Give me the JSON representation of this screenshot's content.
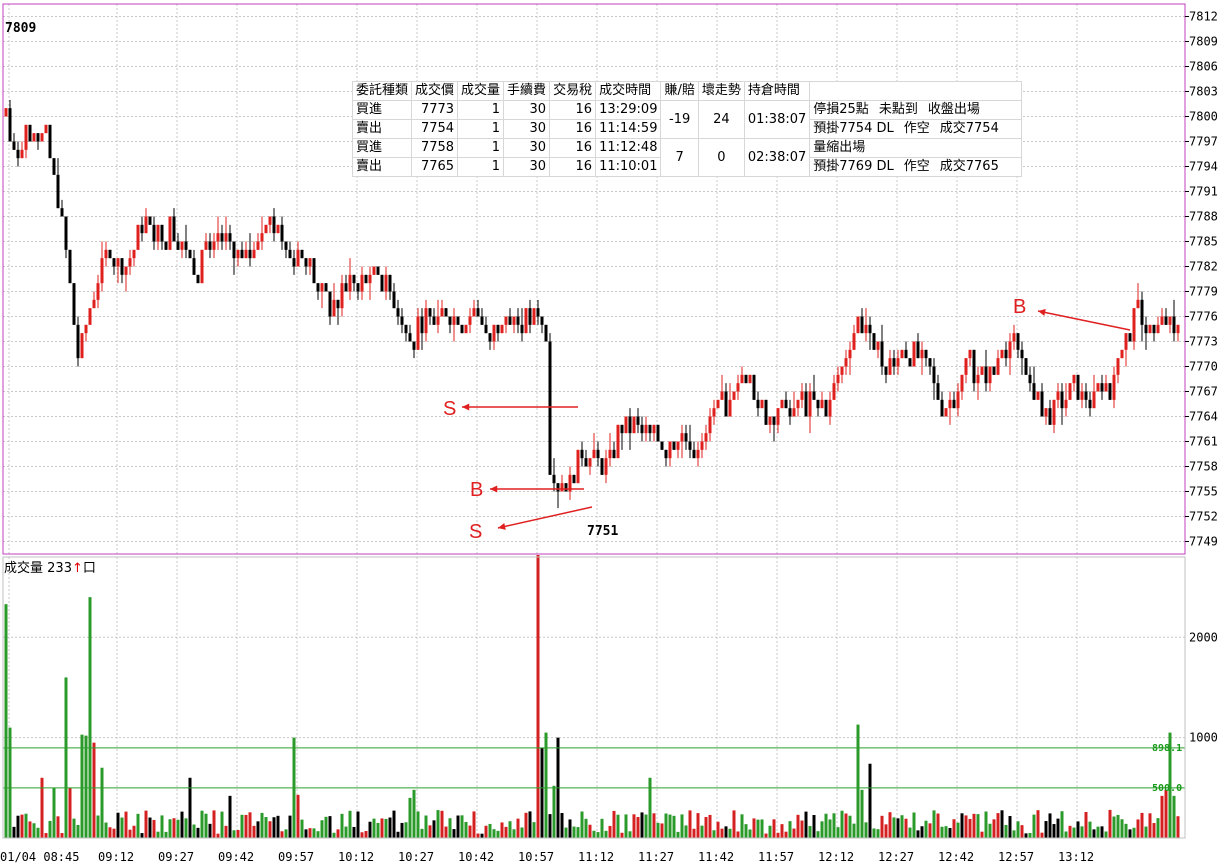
{
  "trade_table": {
    "headers": [
      "委託種類",
      "成交價",
      "成交量",
      "手續費",
      "交易稅",
      "成交時間",
      "賺/賠",
      "壞走勢",
      "持倉時間"
    ],
    "rows": [
      {
        "type": "買進",
        "price": "7773",
        "qty": "1",
        "fee": "30",
        "tax": "16",
        "time": "13:29:09"
      },
      {
        "type": "賣出",
        "price": "7754",
        "qty": "1",
        "fee": "30",
        "tax": "16",
        "time": "11:14:59"
      },
      {
        "type": "買進",
        "price": "7758",
        "qty": "1",
        "fee": "30",
        "tax": "16",
        "time": "11:12:48"
      },
      {
        "type": "賣出",
        "price": "7765",
        "qty": "1",
        "fee": "30",
        "tax": "16",
        "time": "11:10:01"
      }
    ],
    "pairs": [
      {
        "pl": "-19",
        "bad": "24",
        "hold": "01:38:07",
        "note1": [
          "停損25點",
          "未點到",
          "收盤出場"
        ],
        "note2": [
          "預掛7754 DL",
          "作空",
          "成交7754"
        ]
      },
      {
        "pl": "7",
        "bad": "0",
        "hold": "02:38:07",
        "note1": [
          "量縮出場"
        ],
        "note2": [
          "預掛7769 DL",
          "作空",
          "成交7765"
        ]
      }
    ]
  },
  "volume_label": {
    "text": "成交量",
    "value": "233",
    "arrow": "↑",
    "unit": "口"
  },
  "chart_data": {
    "type": "candlestick",
    "price_axis": {
      "ticks": [
        7812,
        7809,
        7806,
        7803,
        7800,
        7797,
        7794,
        7791,
        7788,
        7785,
        7782,
        7779,
        7776,
        7773,
        7770,
        7767,
        7764,
        7761,
        7758,
        7755,
        7752,
        7749
      ],
      "ylim": [
        7747.5,
        7813.5
      ]
    },
    "volume_axis": {
      "ticks": [
        2000,
        1000
      ],
      "ylim": [
        0,
        2800
      ]
    },
    "x_ticks": [
      "01/04 08:45",
      "09:12",
      "09:27",
      "09:42",
      "09:57",
      "10:12",
      "10:27",
      "10:42",
      "10:57",
      "11:12",
      "11:27",
      "11:42",
      "11:57",
      "12:12",
      "12:27",
      "12:42",
      "12:57",
      "13:12"
    ],
    "high_label": "7809",
    "low_label": "7751",
    "reference_lines": [
      {
        "value": 898.1,
        "label": "898.1"
      },
      {
        "value": 500.0,
        "label": "500.0"
      }
    ],
    "markers": [
      {
        "letter": "S",
        "time": "10:58",
        "price": 7765
      },
      {
        "letter": "B",
        "time": "10:58",
        "price": 7755.5
      },
      {
        "letter": "S",
        "time": "11:02",
        "price": 7751.5
      },
      {
        "letter": "B",
        "time": "13:29",
        "price": 7774
      }
    ],
    "anchors": [
      [
        "08:45",
        7800
      ],
      [
        "08:47",
        7795
      ],
      [
        "08:50",
        7798
      ],
      [
        "08:52",
        7796
      ],
      [
        "08:55",
        7798
      ],
      [
        "08:58",
        7790
      ],
      [
        "09:00",
        7784
      ],
      [
        "09:03",
        7771
      ],
      [
        "09:05",
        7775
      ],
      [
        "09:08",
        7781
      ],
      [
        "09:11",
        7784
      ],
      [
        "09:14",
        7782
      ],
      [
        "09:17",
        7784
      ],
      [
        "09:20",
        7788
      ],
      [
        "09:23",
        7786
      ],
      [
        "09:26",
        7787
      ],
      [
        "09:29",
        7785
      ],
      [
        "09:32",
        7782
      ],
      [
        "09:35",
        7784
      ],
      [
        "09:38",
        7786
      ],
      [
        "09:41",
        7784
      ],
      [
        "09:44",
        7782
      ],
      [
        "09:47",
        7785
      ],
      [
        "09:50",
        7788
      ],
      [
        "09:53",
        7786
      ],
      [
        "09:56",
        7785
      ],
      [
        "10:00",
        7783
      ],
      [
        "10:03",
        7779
      ],
      [
        "10:06",
        7777
      ],
      [
        "10:10",
        7780
      ],
      [
        "10:14",
        7780
      ],
      [
        "10:18",
        7781
      ],
      [
        "10:22",
        7778
      ],
      [
        "10:26",
        7774
      ],
      [
        "10:30",
        7776
      ],
      [
        "10:34",
        7777
      ],
      [
        "10:38",
        7776
      ],
      [
        "10:42",
        7776
      ],
      [
        "10:46",
        7774
      ],
      [
        "10:50",
        7777
      ],
      [
        "10:54",
        7775
      ],
      [
        "10:58",
        7776
      ],
      [
        "11:00",
        7774
      ],
      [
        "11:01",
        7758
      ],
      [
        "11:03",
        7756
      ],
      [
        "11:05",
        7755
      ],
      [
        "11:07",
        7758
      ],
      [
        "11:10",
        7760
      ],
      [
        "11:13",
        7758
      ],
      [
        "11:16",
        7759
      ],
      [
        "11:19",
        7763
      ],
      [
        "11:22",
        7763
      ],
      [
        "11:25",
        7762
      ],
      [
        "11:28",
        7761
      ],
      [
        "11:31",
        7761
      ],
      [
        "11:34",
        7762
      ],
      [
        "11:37",
        7760
      ],
      [
        "11:40",
        7762
      ],
      [
        "11:43",
        7765
      ],
      [
        "11:46",
        7766
      ],
      [
        "11:49",
        7768
      ],
      [
        "11:52",
        7766
      ],
      [
        "11:55",
        7764
      ],
      [
        "11:58",
        7765
      ],
      [
        "12:01",
        7765
      ],
      [
        "12:04",
        7766
      ],
      [
        "12:07",
        7765
      ],
      [
        "12:10",
        7765
      ],
      [
        "12:13",
        7768
      ],
      [
        "12:16",
        7773
      ],
      [
        "12:18",
        7776
      ],
      [
        "12:21",
        7774
      ],
      [
        "12:24",
        7771
      ],
      [
        "12:27",
        7771
      ],
      [
        "12:30",
        7772
      ],
      [
        "12:33",
        7771
      ],
      [
        "12:36",
        7769
      ],
      [
        "12:39",
        7765
      ],
      [
        "12:42",
        7767
      ],
      [
        "12:45",
        7770
      ],
      [
        "12:48",
        7769
      ],
      [
        "12:51",
        7769
      ],
      [
        "12:54",
        7771
      ],
      [
        "12:57",
        7773
      ],
      [
        "13:00",
        7769
      ],
      [
        "13:03",
        7766
      ],
      [
        "13:06",
        7764
      ],
      [
        "13:09",
        7766
      ],
      [
        "13:12",
        7768
      ],
      [
        "13:15",
        7766
      ],
      [
        "13:18",
        7766
      ],
      [
        "13:21",
        7767
      ],
      [
        "13:24",
        7772
      ],
      [
        "13:27",
        7776
      ],
      [
        "13:30",
        7775
      ],
      [
        "13:33",
        7774
      ],
      [
        "13:36",
        7775
      ],
      [
        "13:38",
        7774
      ]
    ],
    "volume_spikes": [
      [
        "08:45",
        2330
      ],
      [
        "08:46",
        1100
      ],
      [
        "08:54",
        600
      ],
      [
        "08:57",
        500
      ],
      [
        "09:00",
        1600
      ],
      [
        "09:01",
        500
      ],
      [
        "09:04",
        1030
      ],
      [
        "09:05",
        1020
      ],
      [
        "09:06",
        2400
      ],
      [
        "09:07",
        950
      ],
      [
        "09:09",
        700
      ],
      [
        "09:31",
        600
      ],
      [
        "09:41",
        420
      ],
      [
        "09:57",
        1000
      ],
      [
        "09:58",
        430
      ],
      [
        "10:26",
        400
      ],
      [
        "10:27",
        480
      ],
      [
        "10:58",
        2820
      ],
      [
        "10:59",
        900
      ],
      [
        "11:00",
        1050
      ],
      [
        "11:02",
        520
      ],
      [
        "11:03",
        1000
      ],
      [
        "11:26",
        600
      ],
      [
        "12:18",
        1130
      ],
      [
        "12:19",
        480
      ],
      [
        "12:21",
        740
      ],
      [
        "13:34",
        420
      ],
      [
        "13:35",
        480
      ],
      [
        "13:36",
        1050
      ],
      [
        "13:37",
        420
      ]
    ]
  }
}
